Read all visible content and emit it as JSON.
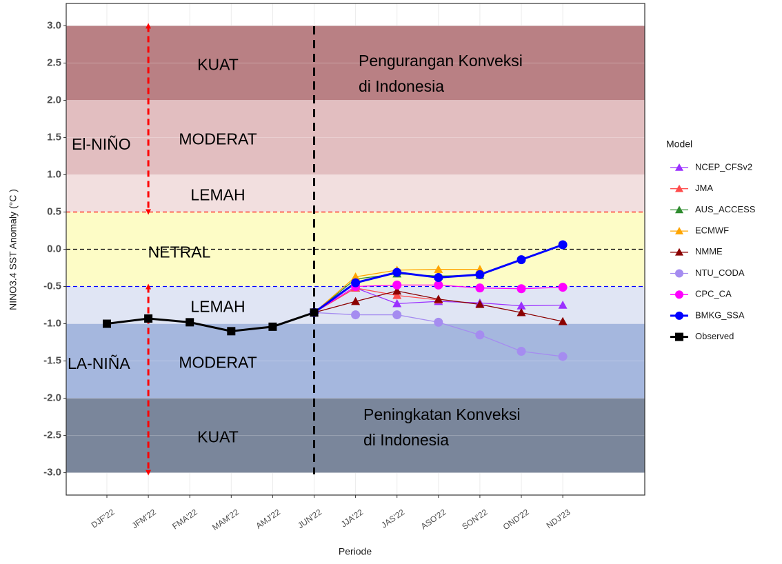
{
  "chart_data": {
    "type": "line",
    "y_label": "NINO3.4 SST Anomaly (°C )",
    "x_label": "Periode",
    "legend_title": "Model",
    "categories": [
      "DJF'22",
      "JFM'22",
      "FMA'22",
      "MAM'22",
      "AMJ'22",
      "JUN'22",
      "JJA'22",
      "JAS'22",
      "ASO'22",
      "SON'22",
      "OND'22",
      "NDJ'23"
    ],
    "ylim": [
      -3.3,
      3.3
    ],
    "yticks": [
      {
        "value": 3,
        "label": "3.0"
      },
      2.5,
      {
        "value": 2,
        "label": "2.0"
      },
      1.5,
      {
        "value": 1,
        "label": "1.0"
      },
      0.5,
      {
        "value": 0,
        "label": "0.0"
      },
      -0.5,
      {
        "value": -1,
        "label": "-1.0"
      },
      -1.5,
      {
        "value": -2,
        "label": "-2.0"
      },
      -2.5,
      {
        "value": -3,
        "label": "-3.0"
      }
    ],
    "grid": true,
    "legend": "right",
    "bands": [
      {
        "from": 2,
        "to": 3,
        "color": "#b98084",
        "label": "KUAT"
      },
      {
        "from": 1,
        "to": 2,
        "color": "#e2bec0",
        "label": "MODERAT"
      },
      {
        "from": 0.5,
        "to": 1,
        "color": "#f2dfdf",
        "label": "LEMAH"
      },
      {
        "from": -0.5,
        "to": 0.5,
        "color": "#fdfcc6",
        "label": "NETRAL"
      },
      {
        "from": -1,
        "to": -0.5,
        "color": "#e0e5f4",
        "label": "LEMAH"
      },
      {
        "from": -2,
        "to": -1,
        "color": "#a5b7de",
        "label": "MODERAT"
      },
      {
        "from": -3,
        "to": -2,
        "color": "#7a869b",
        "label": "KUAT"
      }
    ],
    "hlines": [
      {
        "value": 0.5,
        "color": "#ff0000"
      },
      {
        "value": 0,
        "color": "#000000"
      },
      {
        "value": -0.5,
        "color": "#0000ff"
      }
    ],
    "arrows": [
      {
        "from": 3,
        "to": 0.5
      },
      {
        "from": -0.5,
        "to": -3
      }
    ],
    "annotations": {
      "el_nino": "El-NIÑO",
      "la_nina": "LA-NIÑA",
      "top": [
        "Pengurangan Konveksi",
        "di Indonesia"
      ],
      "bottom": [
        "Peningkatan Konveksi",
        "di Indonesia"
      ]
    },
    "series": [
      {
        "name": "NCEP_CFSv2",
        "color": "#9b30ff",
        "marker": "triangle",
        "values": [
          null,
          null,
          null,
          null,
          null,
          -0.85,
          -0.52,
          -0.73,
          -0.7,
          -0.72,
          -0.76,
          -0.75
        ]
      },
      {
        "name": "JMA",
        "color": "#ff4c4c",
        "marker": "triangle",
        "values": [
          null,
          null,
          null,
          null,
          null,
          -0.85,
          -0.52,
          -0.62,
          -0.68,
          null,
          null,
          null
        ]
      },
      {
        "name": "AUS_ACCESS",
        "color": "#2e8b2e",
        "marker": "triangle",
        "values": [
          null,
          null,
          null,
          null,
          null,
          -0.85,
          -0.4,
          -0.33,
          -0.36,
          -0.35,
          null,
          null
        ]
      },
      {
        "name": "ECMWF",
        "color": "#ffa500",
        "marker": "triangle",
        "values": [
          null,
          null,
          null,
          null,
          null,
          -0.85,
          -0.37,
          -0.28,
          -0.27,
          -0.27,
          null,
          null
        ]
      },
      {
        "name": "NMME",
        "color": "#8b0000",
        "marker": "triangle",
        "values": [
          null,
          null,
          null,
          null,
          null,
          -0.85,
          -0.7,
          -0.56,
          -0.67,
          -0.74,
          -0.85,
          -0.97
        ]
      },
      {
        "name": "NTU_CODA",
        "color": "#a58cf0",
        "marker": "circle",
        "values": [
          null,
          null,
          null,
          null,
          null,
          -0.85,
          -0.88,
          -0.88,
          -0.98,
          -1.15,
          -1.37,
          -1.44
        ]
      },
      {
        "name": "CPC_CA",
        "color": "#ff00ff",
        "marker": "circle",
        "values": [
          null,
          null,
          null,
          null,
          null,
          -0.85,
          -0.5,
          -0.48,
          -0.48,
          -0.52,
          -0.53,
          -0.51
        ]
      },
      {
        "name": "BMKG_SSA",
        "color": "#0000ff",
        "marker": "circle",
        "width": 3,
        "values": [
          null,
          null,
          null,
          null,
          null,
          -0.85,
          -0.45,
          -0.31,
          -0.38,
          -0.34,
          -0.14,
          0.06
        ]
      },
      {
        "name": "Observed",
        "color": "#000000",
        "marker": "square",
        "width": 3,
        "values": [
          -1.0,
          -0.93,
          -0.98,
          -1.1,
          -1.04,
          -0.85,
          null,
          null,
          null,
          null,
          null,
          null
        ]
      }
    ]
  }
}
